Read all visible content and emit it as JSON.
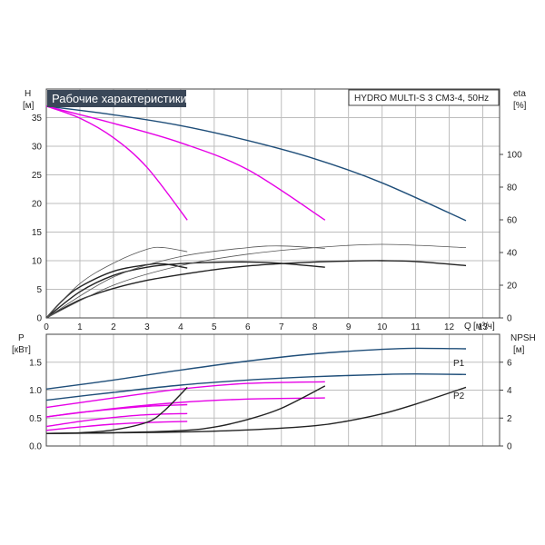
{
  "chart_data": [
    {
      "type": "line",
      "title": "Рабочие характеристики",
      "info": "HYDRO MULTI-S 3 CM3-4, 50Hz",
      "xlabel": "Q",
      "xunit": "[м³/ч]",
      "ylabel": "H",
      "yunit": "[м]",
      "y2label": "eta",
      "y2unit": "[%]",
      "xlim": [
        0,
        13.5
      ],
      "ylim": [
        0,
        40
      ],
      "y2lim": [
        0,
        140
      ],
      "xticks": [
        "0",
        "1",
        "2",
        "3",
        "4",
        "5",
        "6",
        "7",
        "8",
        "9",
        "10",
        "11",
        "12",
        "13"
      ],
      "yticks": [
        "0",
        "5",
        "10",
        "15",
        "20",
        "25",
        "30",
        "35"
      ],
      "y2ticks": [
        "0",
        "20",
        "40",
        "60",
        "80",
        "100"
      ],
      "grid": true,
      "series": [
        {
          "color": "#1f4e79",
          "axis": "left",
          "x": [
            0,
            2,
            4,
            6,
            8,
            10,
            12.5
          ],
          "values": [
            37,
            35.5,
            33.6,
            31,
            27.8,
            23.6,
            17
          ]
        },
        {
          "color": "#e600e6",
          "axis": "left",
          "x": [
            0,
            2,
            4,
            6,
            8.3
          ],
          "values": [
            37,
            34,
            30.6,
            25.9,
            17.1
          ]
        },
        {
          "color": "#e600e6",
          "axis": "left",
          "x": [
            0,
            1,
            2,
            3,
            4.2
          ],
          "values": [
            37,
            34.9,
            31.5,
            26.3,
            17.1
          ]
        },
        {
          "color": "#222222",
          "axis": "right",
          "x": [
            0,
            1,
            2,
            3,
            4,
            5,
            6,
            7,
            8,
            9,
            10,
            11,
            12.5
          ],
          "values": [
            0,
            11,
            18,
            23,
            26.5,
            29.5,
            31.8,
            33.2,
            34.2,
            34.8,
            35,
            34.5,
            32
          ]
        },
        {
          "color": "#222222",
          "axis": "right",
          "x": [
            0,
            1,
            2,
            3,
            4,
            5,
            6,
            7,
            8.3
          ],
          "values": [
            0,
            16,
            26,
            31,
            33.2,
            34,
            34.2,
            33.4,
            31
          ]
        },
        {
          "color": "#222222",
          "axis": "right",
          "x": [
            0,
            0.5,
            1,
            2,
            3,
            3.5,
            4.2
          ],
          "values": [
            0,
            11,
            19,
            28.5,
            32.5,
            33,
            30.5
          ]
        },
        {
          "color": "#555555",
          "axis": "right",
          "x": [
            0,
            2,
            4,
            6,
            8,
            10,
            12.5
          ],
          "values": [
            0,
            20,
            32,
            39,
            43,
            45,
            43
          ]
        },
        {
          "color": "#555555",
          "axis": "right",
          "x": [
            0,
            2,
            4,
            6,
            7,
            8.3
          ],
          "values": [
            0,
            25,
            37.5,
            43,
            44,
            42.5
          ]
        },
        {
          "color": "#555555",
          "axis": "right",
          "x": [
            0,
            1,
            2,
            3,
            3.5,
            4.2
          ],
          "values": [
            0,
            21,
            33.5,
            42,
            43,
            40.5
          ]
        }
      ]
    },
    {
      "type": "line",
      "xlabel": "Q",
      "ylabel": "P",
      "yunit": "[кВт]",
      "y2label": "NPSH",
      "y2unit": "[м]",
      "xlim": [
        0,
        13.5
      ],
      "ylim": [
        0,
        2
      ],
      "y2lim": [
        0,
        8
      ],
      "yticks": [
        "0.0",
        "0.5",
        "1.0",
        "1.5"
      ],
      "y2ticks": [
        "0",
        "2",
        "4",
        "6"
      ],
      "grid": true,
      "annotations": [
        "P1",
        "P2"
      ],
      "series": [
        {
          "name": "P1",
          "color": "#1f4e79",
          "axis": "left",
          "x": [
            0,
            2,
            4,
            6,
            8,
            10,
            11,
            12.5
          ],
          "values": [
            1.02,
            1.18,
            1.36,
            1.52,
            1.65,
            1.73,
            1.75,
            1.74
          ]
        },
        {
          "name": "P2",
          "color": "#1f4e79",
          "axis": "left",
          "x": [
            0,
            2,
            4,
            6,
            8,
            10,
            11,
            12.5
          ],
          "values": [
            0.82,
            0.96,
            1.09,
            1.18,
            1.24,
            1.28,
            1.29,
            1.28
          ]
        },
        {
          "color": "#e600e6",
          "axis": "left",
          "x": [
            0,
            2,
            4,
            6,
            8.3
          ],
          "values": [
            0.69,
            0.86,
            1.02,
            1.12,
            1.15
          ]
        },
        {
          "color": "#e600e6",
          "axis": "left",
          "x": [
            0,
            2,
            4,
            6,
            8.3
          ],
          "values": [
            0.52,
            0.67,
            0.78,
            0.84,
            0.86
          ]
        },
        {
          "color": "#e600e6",
          "axis": "left",
          "x": [
            0,
            1,
            2,
            3,
            4.2
          ],
          "values": [
            0.52,
            0.6,
            0.66,
            0.71,
            0.74
          ]
        },
        {
          "color": "#e600e6",
          "axis": "left",
          "x": [
            0,
            1,
            2,
            3,
            4.2
          ],
          "values": [
            0.35,
            0.44,
            0.51,
            0.56,
            0.58
          ]
        },
        {
          "color": "#e600e6",
          "axis": "left",
          "x": [
            0,
            1,
            2,
            3,
            4.2
          ],
          "values": [
            0.28,
            0.34,
            0.39,
            0.42,
            0.44
          ]
        },
        {
          "color": "#222222",
          "axis": "right",
          "x": [
            0,
            2,
            4,
            6,
            8,
            9,
            10,
            11,
            12.5
          ],
          "values": [
            0.9,
            0.94,
            1.0,
            1.15,
            1.45,
            1.8,
            2.3,
            3.0,
            4.2
          ]
        },
        {
          "color": "#222222",
          "axis": "right",
          "x": [
            0,
            2,
            4,
            5,
            6,
            7,
            8.3
          ],
          "values": [
            0.9,
            0.95,
            1.1,
            1.35,
            1.9,
            2.7,
            4.3
          ]
        },
        {
          "color": "#222222",
          "axis": "right",
          "x": [
            0,
            1,
            2,
            3,
            3.5,
            4.2
          ],
          "values": [
            0.9,
            0.95,
            1.15,
            1.7,
            2.5,
            4.2
          ]
        }
      ]
    }
  ]
}
